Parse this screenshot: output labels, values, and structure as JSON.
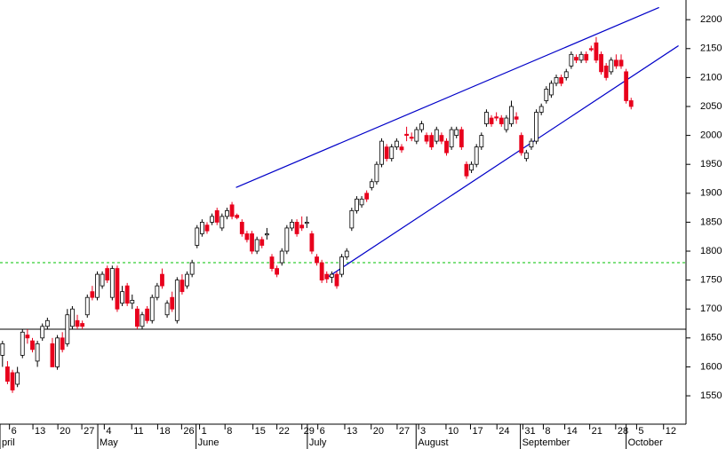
{
  "chart_data": {
    "type": "candlestick",
    "ylim": [
      1501,
      2234
    ],
    "xlim": [
      -0.5,
      137
    ],
    "yticks": [
      1550,
      1600,
      1650,
      1700,
      1750,
      1800,
      1850,
      1900,
      1950,
      2000,
      2050,
      2100,
      2150,
      2200
    ],
    "xticks": [
      {
        "value": 1.4,
        "label": "6"
      },
      {
        "value": 6.1,
        "label": "13"
      },
      {
        "value": 11.1,
        "label": "20"
      },
      {
        "value": 15.9,
        "label": "27"
      },
      {
        "value": 20.4,
        "label": "4"
      },
      {
        "value": 25.9,
        "label": "11"
      },
      {
        "value": 31.1,
        "label": "18"
      },
      {
        "value": 35.9,
        "label": "26"
      },
      {
        "value": 39.5,
        "label": "1"
      },
      {
        "value": 44.6,
        "label": "8"
      },
      {
        "value": 50.2,
        "label": "15"
      },
      {
        "value": 55,
        "label": "22"
      },
      {
        "value": 60,
        "label": "29"
      },
      {
        "value": 63.2,
        "label": "6"
      },
      {
        "value": 68.6,
        "label": "13"
      },
      {
        "value": 73.9,
        "label": "20"
      },
      {
        "value": 79.1,
        "label": "27"
      },
      {
        "value": 83.4,
        "label": "3"
      },
      {
        "value": 88.9,
        "label": "10"
      },
      {
        "value": 93.8,
        "label": "17"
      },
      {
        "value": 99.1,
        "label": "24"
      },
      {
        "value": 104.3,
        "label": "31"
      },
      {
        "value": 108.4,
        "label": "8"
      },
      {
        "value": 112.7,
        "label": "14"
      },
      {
        "value": 117.7,
        "label": "21"
      },
      {
        "value": 122.9,
        "label": "28"
      },
      {
        "value": 127.1,
        "label": "5"
      },
      {
        "value": 132.5,
        "label": "12"
      }
    ],
    "month_ticks": [
      {
        "value": -0.5,
        "label": "pril"
      },
      {
        "value": 19.1,
        "label": "May"
      },
      {
        "value": 38.8,
        "label": "June"
      },
      {
        "value": 61.1,
        "label": "July"
      },
      {
        "value": 82.9,
        "label": "August"
      },
      {
        "value": 103.8,
        "label": "September"
      },
      {
        "value": 125,
        "label": "October"
      }
    ],
    "up_color": "#ffffff",
    "down_color": "#e8001c",
    "hlines": [
      {
        "value": 1780,
        "color": "#00c000",
        "dashed": true
      },
      {
        "value": 1665,
        "color": "#000000",
        "dashed": false
      }
    ],
    "trendlines": [
      {
        "x": [
          46.8,
          131.6
        ],
        "y": [
          1910,
          2221
        ],
        "color": "#0000c8"
      },
      {
        "x": [
          65,
          135.5
        ],
        "y": [
          1754,
          2155
        ],
        "color": "#0000c8"
      }
    ],
    "candles": [
      [
        1620,
        1645,
        1600,
        1640
      ],
      [
        1600,
        1610,
        1570,
        1575
      ],
      [
        1590,
        1595,
        1555,
        1560
      ],
      [
        1570,
        1600,
        1565,
        1590
      ],
      [
        1620,
        1665,
        1615,
        1660
      ],
      [
        1655,
        1665,
        1640,
        1650
      ],
      [
        1645,
        1650,
        1625,
        1630
      ],
      [
        1610,
        1645,
        1600,
        1640
      ],
      [
        1650,
        1675,
        1645,
        1670
      ],
      [
        1670,
        1685,
        1665,
        1680
      ],
      [
        1640,
        1650,
        1600,
        1600
      ],
      [
        1600,
        1655,
        1595,
        1650
      ],
      [
        1650,
        1660,
        1625,
        1630
      ],
      [
        1640,
        1700,
        1635,
        1690
      ],
      [
        1670,
        1705,
        1665,
        1700
      ],
      [
        1680,
        1690,
        1665,
        1670
      ],
      [
        1675,
        1680,
        1665,
        1670
      ],
      [
        1690,
        1725,
        1685,
        1720
      ],
      [
        1730,
        1740,
        1715,
        1720
      ],
      [
        1720,
        1765,
        1715,
        1760
      ],
      [
        1740,
        1765,
        1735,
        1760
      ],
      [
        1770,
        1775,
        1745,
        1750
      ],
      [
        1720,
        1775,
        1715,
        1770
      ],
      [
        1770,
        1775,
        1695,
        1700
      ],
      [
        1710,
        1740,
        1705,
        1730
      ],
      [
        1740,
        1745,
        1705,
        1710
      ],
      [
        1710,
        1725,
        1700,
        1715
      ],
      [
        1700,
        1705,
        1665,
        1670
      ],
      [
        1670,
        1695,
        1665,
        1690
      ],
      [
        1700,
        1705,
        1675,
        1680
      ],
      [
        1680,
        1725,
        1675,
        1720
      ],
      [
        1720,
        1745,
        1715,
        1740
      ],
      [
        1760,
        1770,
        1735,
        1740
      ],
      [
        1690,
        1715,
        1685,
        1710
      ],
      [
        1720,
        1730,
        1695,
        1700
      ],
      [
        1680,
        1755,
        1675,
        1750
      ],
      [
        1750,
        1760,
        1725,
        1730
      ],
      [
        1740,
        1765,
        1735,
        1760
      ],
      [
        1760,
        1785,
        1755,
        1780
      ],
      [
        1810,
        1845,
        1805,
        1840
      ],
      [
        1830,
        1855,
        1825,
        1850
      ],
      [
        1845,
        1850,
        1830,
        1835
      ],
      [
        1850,
        1865,
        1845,
        1860
      ],
      [
        1870,
        1875,
        1845,
        1850
      ],
      [
        1840,
        1865,
        1835,
        1860
      ],
      [
        1860,
        1875,
        1855,
        1870
      ],
      [
        1880,
        1885,
        1855,
        1860
      ],
      [
        1862,
        1865,
        1855,
        1858
      ],
      [
        1850,
        1855,
        1825,
        1830
      ],
      [
        1830,
        1835,
        1815,
        1820
      ],
      [
        1830,
        1835,
        1795,
        1800
      ],
      [
        1800,
        1825,
        1795,
        1820
      ],
      [
        1820,
        1825,
        1805,
        1810
      ],
      [
        1828,
        1840,
        1820,
        1830
      ],
      [
        1790,
        1795,
        1765,
        1770
      ],
      [
        1770,
        1775,
        1755,
        1760
      ],
      [
        1780,
        1805,
        1775,
        1800
      ],
      [
        1800,
        1845,
        1795,
        1840
      ],
      [
        1840,
        1855,
        1835,
        1850
      ],
      [
        1850,
        1855,
        1825,
        1830
      ],
      [
        1845,
        1860,
        1835,
        1840
      ],
      [
        1848,
        1860,
        1840,
        1850
      ],
      [
        1830,
        1835,
        1795,
        1800
      ],
      [
        1790,
        1795,
        1775,
        1780
      ],
      [
        1780,
        1785,
        1745,
        1750
      ],
      [
        1760,
        1765,
        1745,
        1752
      ],
      [
        1755,
        1765,
        1745,
        1760
      ],
      [
        1760,
        1765,
        1735,
        1740
      ],
      [
        1760,
        1795,
        1755,
        1790
      ],
      [
        1790,
        1805,
        1785,
        1800
      ],
      [
        1840,
        1875,
        1835,
        1870
      ],
      [
        1870,
        1895,
        1865,
        1890
      ],
      [
        1880,
        1895,
        1875,
        1890
      ],
      [
        1900,
        1905,
        1885,
        1890
      ],
      [
        1910,
        1925,
        1905,
        1920
      ],
      [
        1920,
        1955,
        1915,
        1950
      ],
      [
        1950,
        1995,
        1945,
        1990
      ],
      [
        1980,
        1985,
        1955,
        1960
      ],
      [
        1960,
        1985,
        1955,
        1980
      ],
      [
        1980,
        1995,
        1975,
        1990
      ],
      [
        1980,
        1985,
        1970,
        1975
      ],
      [
        2002,
        2015,
        1990,
        2000
      ],
      [
        1997,
        2005,
        1990,
        1995
      ],
      [
        1990,
        2015,
        1985,
        2010
      ],
      [
        2010,
        2025,
        2005,
        2020
      ],
      [
        2000,
        2005,
        1985,
        1990
      ],
      [
        2000,
        2005,
        1975,
        1980
      ],
      [
        1990,
        2015,
        1985,
        2010
      ],
      [
        2000,
        2005,
        1985,
        1990
      ],
      [
        1990,
        1995,
        1965,
        1970
      ],
      [
        1980,
        2015,
        1975,
        2010
      ],
      [
        2000,
        2015,
        1995,
        2010
      ],
      [
        2010,
        2015,
        1975,
        1980
      ],
      [
        1950,
        1955,
        1925,
        1930
      ],
      [
        1940,
        1955,
        1935,
        1950
      ],
      [
        1950,
        1985,
        1945,
        1980
      ],
      [
        1980,
        2005,
        1975,
        2000
      ],
      [
        2020,
        2045,
        2015,
        2040
      ],
      [
        2030,
        2035,
        2015,
        2020
      ],
      [
        2032,
        2040,
        2025,
        2030
      ],
      [
        2030,
        2035,
        2015,
        2020
      ],
      [
        2010,
        2035,
        2005,
        2030
      ],
      [
        2020,
        2060,
        2015,
        2050
      ],
      [
        2032,
        2040,
        2020,
        2028
      ],
      [
        2000,
        2005,
        1965,
        1970
      ],
      [
        1960,
        1975,
        1955,
        1970
      ],
      [
        1980,
        1995,
        1975,
        1990
      ],
      [
        1990,
        2045,
        1985,
        2040
      ],
      [
        2040,
        2055,
        2035,
        2050
      ],
      [
        2060,
        2085,
        2055,
        2080
      ],
      [
        2070,
        2095,
        2065,
        2090
      ],
      [
        2090,
        2105,
        2085,
        2100
      ],
      [
        2100,
        2105,
        2085,
        2090
      ],
      [
        2100,
        2115,
        2095,
        2110
      ],
      [
        2120,
        2145,
        2115,
        2140
      ],
      [
        2135,
        2140,
        2125,
        2130
      ],
      [
        2130,
        2145,
        2125,
        2140
      ],
      [
        2140,
        2145,
        2125,
        2130
      ],
      [
        2150,
        2155,
        2145,
        2148
      ],
      [
        2160,
        2170,
        2125,
        2130
      ],
      [
        2140,
        2145,
        2105,
        2110
      ],
      [
        2120,
        2125,
        2095,
        2100
      ],
      [
        2110,
        2135,
        2105,
        2130
      ],
      [
        2130,
        2140,
        2115,
        2120
      ],
      [
        2130,
        2140,
        2115,
        2120
      ],
      [
        2110,
        2115,
        2055,
        2060
      ],
      [
        2060,
        2065,
        2045,
        2050
      ]
    ]
  }
}
